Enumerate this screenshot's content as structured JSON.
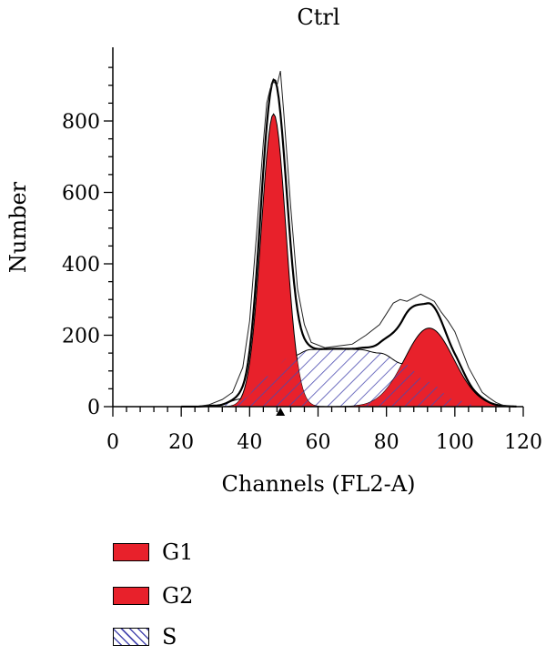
{
  "chart_data": {
    "type": "area",
    "title": "Ctrl",
    "xlabel": "Channels (FL2-A)",
    "ylabel": "Number",
    "xlim": [
      0,
      120
    ],
    "ylim": [
      0,
      950
    ],
    "xticks": [
      0,
      20,
      40,
      60,
      80,
      100,
      120
    ],
    "yticks": [
      0,
      200,
      400,
      600,
      800
    ],
    "marker_x": 49,
    "colors": {
      "g1": "#e8212b",
      "g2": "#e8212b",
      "s_hatch": "#4a4ab0",
      "s_fill": "#ffffff",
      "line": "#000000"
    },
    "series": [
      {
        "name": "G1",
        "type": "gaussian",
        "mean": 47,
        "sd": 3.6,
        "peak": 820
      },
      {
        "name": "G2",
        "type": "gaussian",
        "mean": 92.5,
        "sd": 7.2,
        "peak": 220
      },
      {
        "name": "S",
        "type": "plateau",
        "x": [
          24,
          30,
          38,
          45,
          52,
          58,
          65,
          72,
          78,
          85,
          92,
          100,
          106,
          112
        ],
        "values": [
          0,
          3,
          22,
          85,
          140,
          160,
          162,
          160,
          150,
          120,
          70,
          20,
          4,
          0
        ]
      }
    ],
    "raw_histogram": {
      "x": [
        24,
        28,
        32,
        35,
        38,
        40,
        42,
        44,
        45,
        46,
        47,
        48,
        49,
        50,
        52,
        54,
        56,
        58,
        62,
        66,
        70,
        74,
        78,
        80,
        82,
        84,
        86,
        88,
        90,
        92,
        94,
        96,
        98,
        100,
        102,
        104,
        106,
        108,
        110,
        112,
        114,
        117
      ],
      "values": [
        0,
        5,
        20,
        40,
        110,
        240,
        480,
        740,
        850,
        890,
        910,
        900,
        940,
        820,
        560,
        330,
        230,
        180,
        165,
        170,
        175,
        200,
        230,
        260,
        290,
        300,
        295,
        305,
        315,
        305,
        295,
        265,
        240,
        210,
        160,
        110,
        75,
        40,
        25,
        12,
        4,
        0
      ]
    }
  },
  "legend": [
    {
      "label": "G1",
      "pattern": "solid"
    },
    {
      "label": "G2",
      "pattern": "solid"
    },
    {
      "label": "S",
      "pattern": "hatch"
    }
  ]
}
